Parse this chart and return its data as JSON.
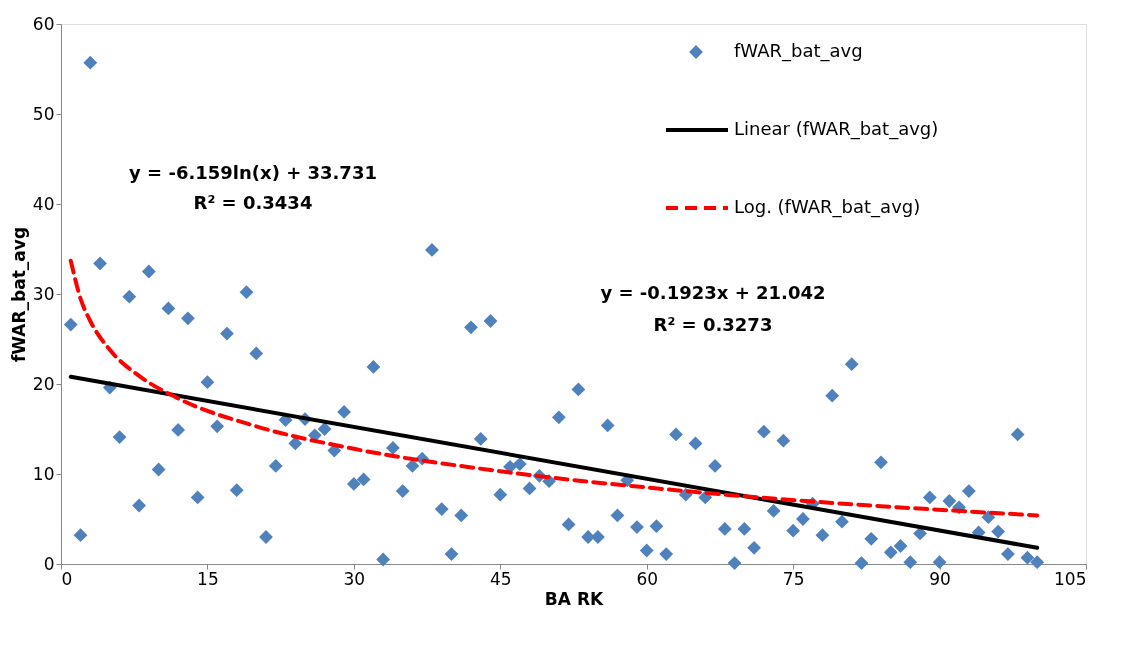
{
  "chart_data": {
    "type": "scatter",
    "xlabel": "BA RK",
    "ylabel": "fWAR_bat_avg",
    "xlim": [
      0,
      105
    ],
    "xticks": [
      0,
      15,
      30,
      45,
      60,
      75,
      90,
      105
    ],
    "ylim": [
      0,
      60
    ],
    "yticks": [
      0,
      10,
      20,
      30,
      40,
      50,
      60
    ],
    "grid": false,
    "legend": "top right",
    "series": [
      {
        "name": "fWAR_bat_avg",
        "type": "scatter",
        "marker": "diamond",
        "color": "#4f81bd",
        "x": [
          1,
          2,
          3,
          4,
          5,
          6,
          7,
          8,
          9,
          10,
          11,
          12,
          13,
          14,
          15,
          16,
          17,
          18,
          19,
          20,
          21,
          22,
          23,
          24,
          25,
          26,
          27,
          28,
          29,
          30,
          31,
          32,
          33,
          34,
          35,
          36,
          37,
          38,
          39,
          40,
          41,
          42,
          43,
          44,
          45,
          46,
          47,
          48,
          49,
          50,
          51,
          52,
          53,
          54,
          55,
          56,
          57,
          58,
          59,
          60,
          61,
          62,
          63,
          64,
          65,
          66,
          67,
          68,
          69,
          70,
          71,
          72,
          73,
          74,
          75,
          76,
          77,
          78,
          79,
          80,
          81,
          82,
          83,
          84,
          85,
          86,
          87,
          88,
          89,
          90,
          91,
          92,
          93,
          94,
          95,
          96,
          97,
          98,
          99,
          100
        ],
        "values": [
          26.6,
          3.2,
          55.7,
          33.4,
          19.6,
          14.1,
          29.7,
          6.5,
          32.5,
          10.5,
          28.4,
          14.9,
          27.3,
          7.4,
          20.2,
          15.3,
          25.6,
          8.2,
          30.2,
          23.4,
          3.0,
          10.9,
          16.0,
          13.4,
          16.1,
          14.3,
          15.0,
          12.6,
          16.9,
          8.9,
          9.4,
          21.9,
          0.5,
          12.9,
          8.1,
          10.9,
          11.7,
          34.9,
          6.1,
          1.1,
          5.4,
          26.3,
          13.9,
          27.0,
          7.7,
          10.8,
          11.1,
          8.4,
          9.8,
          9.2,
          16.3,
          4.4,
          19.4,
          3.0,
          3.0,
          15.4,
          5.4,
          9.3,
          4.1,
          1.5,
          4.2,
          1.1,
          14.4,
          7.7,
          13.4,
          7.4,
          10.9,
          3.9,
          0.1,
          3.9,
          1.8,
          14.7,
          5.9,
          13.7,
          3.7,
          5.0,
          6.7,
          3.2,
          18.7,
          4.7,
          22.2,
          0.1,
          2.8,
          11.3,
          1.3,
          2.0,
          0.2,
          3.4,
          7.4,
          0.2,
          7.0,
          6.3,
          8.1,
          3.5,
          5.2,
          3.6,
          1.1,
          14.4,
          0.7,
          0.2
        ]
      },
      {
        "name": "Linear (fWAR_bat_avg)",
        "type": "line",
        "line_style": "solid",
        "color": "#000000",
        "x": [
          1,
          100
        ],
        "values": [
          20.8,
          1.8
        ]
      },
      {
        "name": "Log. (fWAR_bat_avg)",
        "type": "line",
        "line_style": "dashed",
        "color": "#ff0000",
        "x": [
          1,
          2,
          3,
          5,
          8,
          12,
          20,
          30,
          45,
          65,
          100
        ],
        "values": [
          33.7,
          29.5,
          27.0,
          23.8,
          20.9,
          18.4,
          15.3,
          12.8,
          10.3,
          8.0,
          5.4
        ]
      }
    ],
    "annotations": [
      "y = -6.159ln(x) + 33.731",
      "R² = 0.3434",
      "y = -0.1923x + 21.042",
      "R² = 0.3273"
    ]
  }
}
